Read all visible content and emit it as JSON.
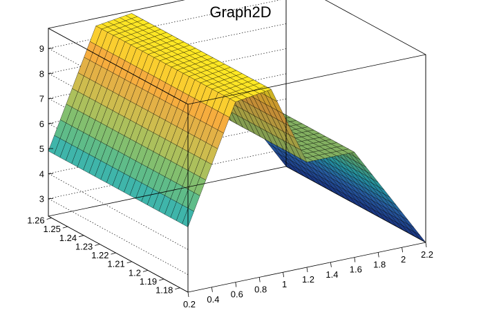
{
  "title": "Graph2D",
  "chart_data": {
    "type": "surface",
    "title": "Graph2D",
    "xlabel": "",
    "ylabel": "",
    "zlabel": "",
    "x_ticks": [
      "0.2",
      "0.4",
      "0.6",
      "0.8",
      "1",
      "1.2",
      "1.4",
      "1.6",
      "1.8",
      "2",
      "2.2"
    ],
    "y_ticks": [
      "1.18",
      "1.19",
      "1.2",
      "1.21",
      "1.22",
      "1.23",
      "1.24",
      "1.25",
      "1.26"
    ],
    "z_ticks": [
      "3",
      "4",
      "5",
      "6",
      "7",
      "8",
      "9"
    ],
    "xlim": [
      0.2,
      2.2
    ],
    "ylim": [
      1.175,
      1.262
    ],
    "zlim": [
      2.3,
      9.8
    ],
    "profile_x": [
      0.2,
      0.6,
      0.9,
      1.2,
      1.6,
      2.2
    ],
    "profile_z": [
      4.9,
      9.5,
      9.7,
      6.5,
      6.5,
      2.3
    ],
    "colormap": [
      "#1f3f9c",
      "#2f6fc0",
      "#2ab0c0",
      "#6fbf78",
      "#c7c050",
      "#f5a840",
      "#fff020"
    ],
    "grid": true
  }
}
